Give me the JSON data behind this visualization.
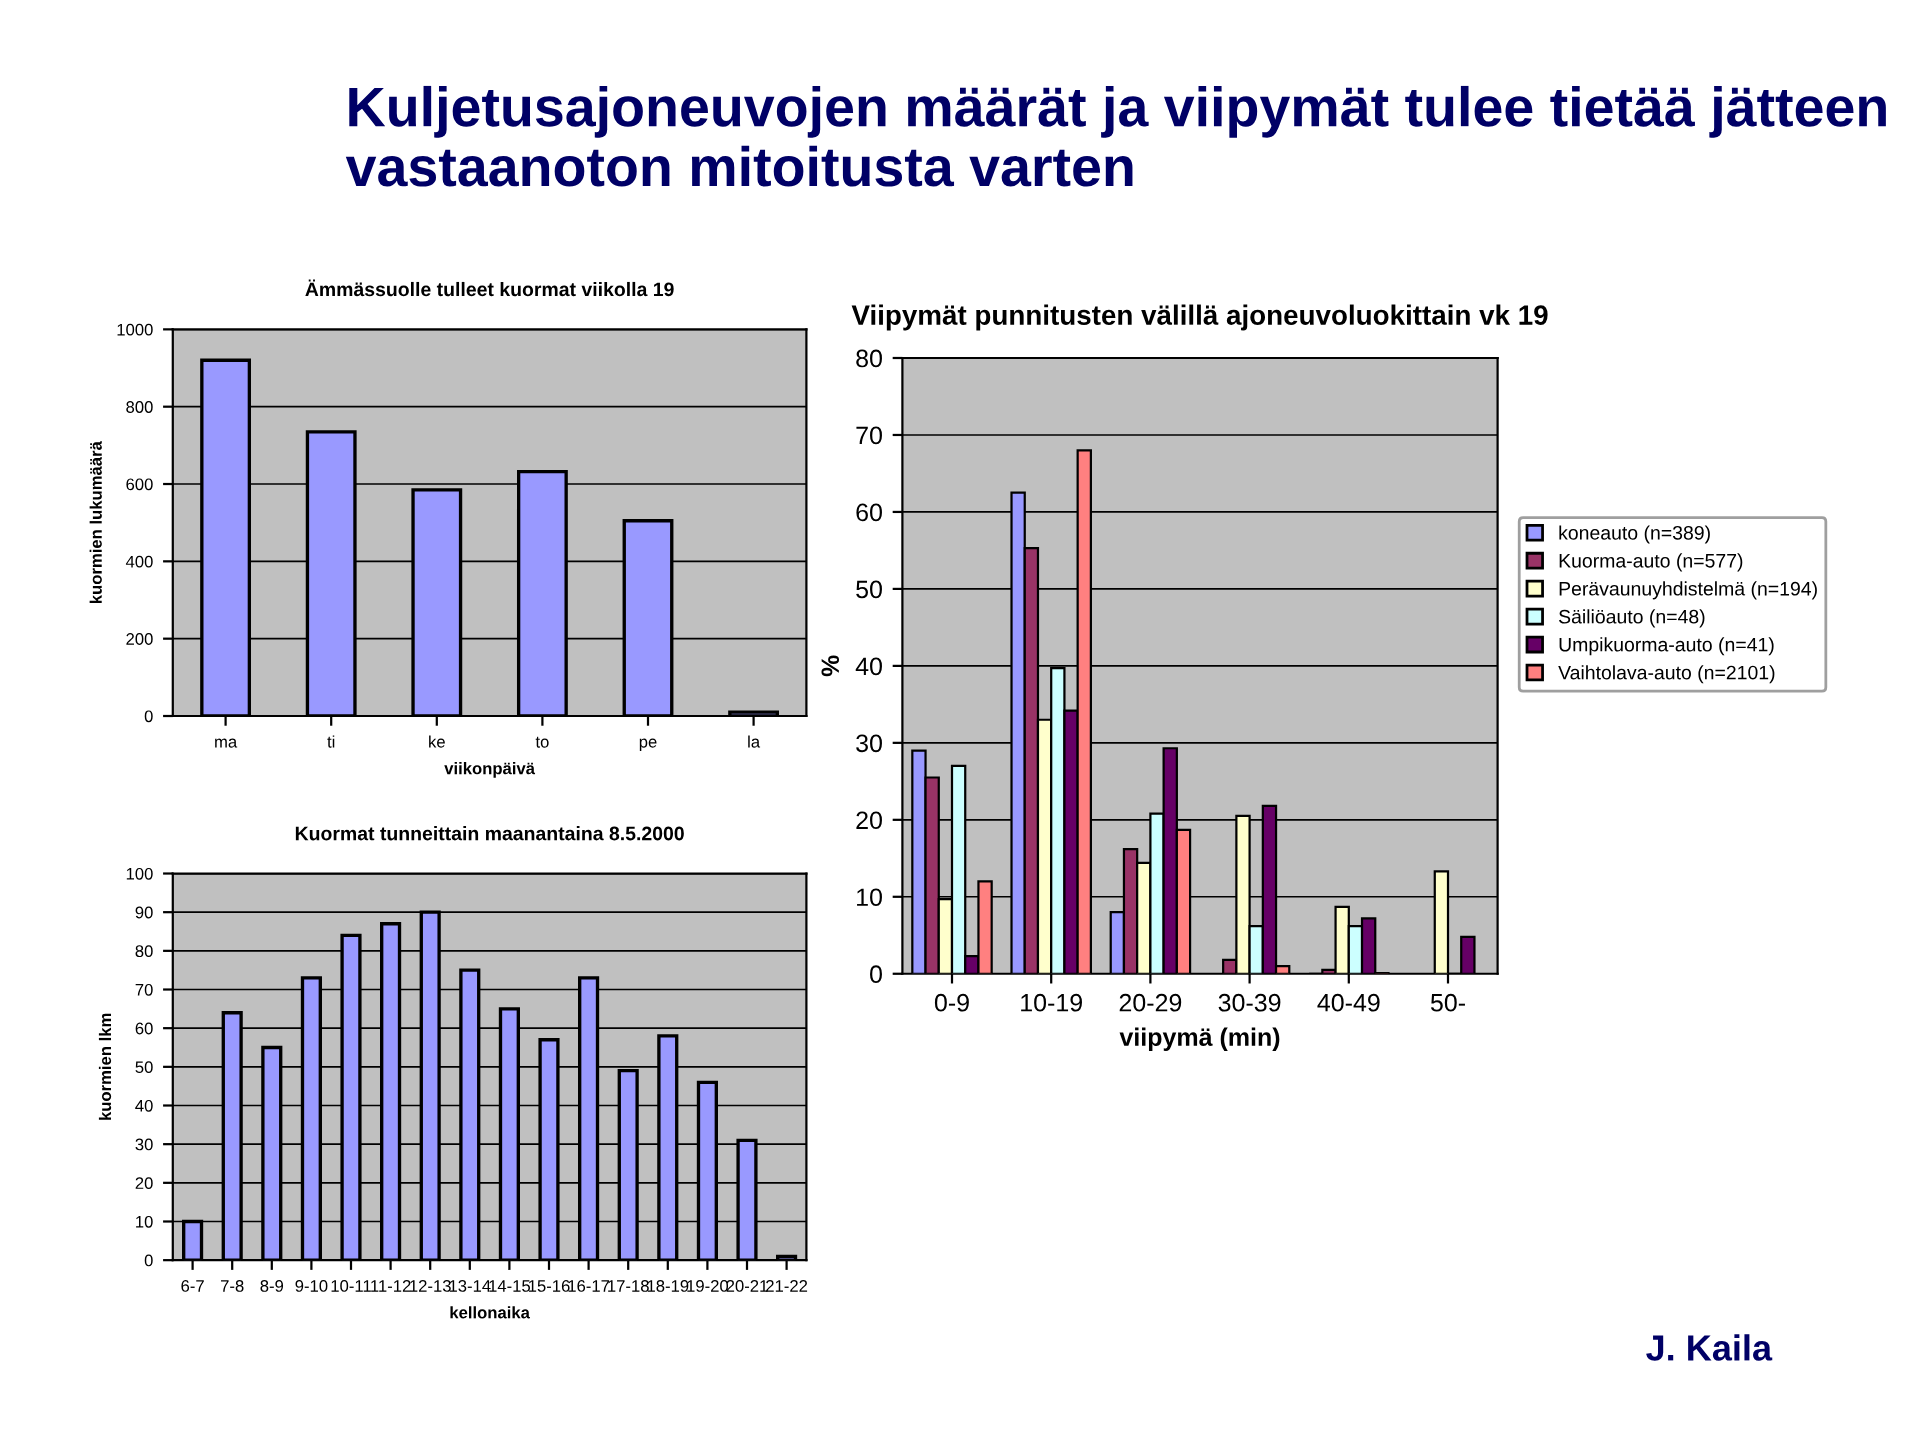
{
  "chart_data": [
    {
      "type": "bar",
      "title": "Ämmässuolle tulleet kuormat viikolla 19",
      "xlabel": "viikonpäivä",
      "ylabel": "kuormien lukumäärä",
      "categories": [
        "ma",
        "ti",
        "ke",
        "to",
        "pe",
        "la"
      ],
      "series": [
        {
          "color": "#9999ff",
          "values": [
            920,
            735,
            585,
            632,
            505,
            10
          ]
        }
      ],
      "ylim": [
        0,
        1000
      ],
      "yticks": [
        0,
        200,
        400,
        600,
        800,
        1000
      ],
      "grid": "y",
      "annotations": [
        "Kuljetusajoneuvojen määrät ja viipymät tulee tietää jätteen vastaanoton mitoitusta varten",
        "J. Kaila"
      ]
    },
    {
      "type": "bar",
      "title": "Viipymät punnitusten välillä ajoneuvoluokittain vk 19",
      "xlabel": "viipymä (min)",
      "ylabel": "%",
      "categories": [
        "0-9",
        "10-19",
        "20-29",
        "30-39",
        "40-49",
        "50-"
      ],
      "series": [
        {
          "name": "koneauto (n=389)",
          "color": "#9999ff",
          "values": [
            29,
            62.5,
            8,
            null,
            0,
            null
          ]
        },
        {
          "name": "Kuorma-auto (n=577)",
          "color": "#993366",
          "values": [
            25.5,
            55.3,
            16.2,
            1.8,
            0.5,
            null
          ]
        },
        {
          "name": "Perävaunuyhdistelmä (n=194)",
          "color": "#ffffcc",
          "values": [
            9.7,
            33,
            14.4,
            20.5,
            8.7,
            13.3
          ]
        },
        {
          "name": "Säiliöauto (n=48)",
          "color": "#ccffff",
          "values": [
            27,
            39.7,
            20.8,
            6.2,
            6.2,
            0
          ]
        },
        {
          "name": "Umpikuorma-auto (n=41)",
          "color": "#660066",
          "values": [
            2.3,
            34.2,
            29.3,
            21.8,
            7.2,
            4.8
          ]
        },
        {
          "name": "Vaihtolava-auto (n=2101)",
          "color": "#ff8080",
          "values": [
            12,
            68,
            18.7,
            1,
            0.1,
            null
          ]
        }
      ],
      "ylim": [
        0,
        80
      ],
      "yticks": [
        0,
        10,
        20,
        30,
        40,
        50,
        60,
        70,
        80
      ],
      "grid": "y",
      "legend": "right"
    },
    {
      "type": "bar",
      "title": "Kuormat tunneittain maanantaina 8.5.2000",
      "xlabel": "kellonaika",
      "ylabel": "kuormien lkm",
      "categories": [
        "6-7",
        "7-8",
        "8-9",
        "9-10",
        "10-11",
        "11-12",
        "12-13",
        "13-14",
        "14-15",
        "15-16",
        "16-17",
        "17-18",
        "18-19",
        "19-20",
        "20-21",
        "21-22"
      ],
      "series": [
        {
          "color": "#9999ff",
          "values": [
            10,
            64,
            55,
            73,
            84,
            87,
            90,
            75,
            65,
            57,
            73,
            49,
            58,
            46,
            31,
            1
          ]
        }
      ],
      "ylim": [
        0,
        100
      ],
      "yticks": [
        0,
        10,
        20,
        30,
        40,
        50,
        60,
        70,
        80,
        90,
        100
      ],
      "grid": "y"
    }
  ]
}
